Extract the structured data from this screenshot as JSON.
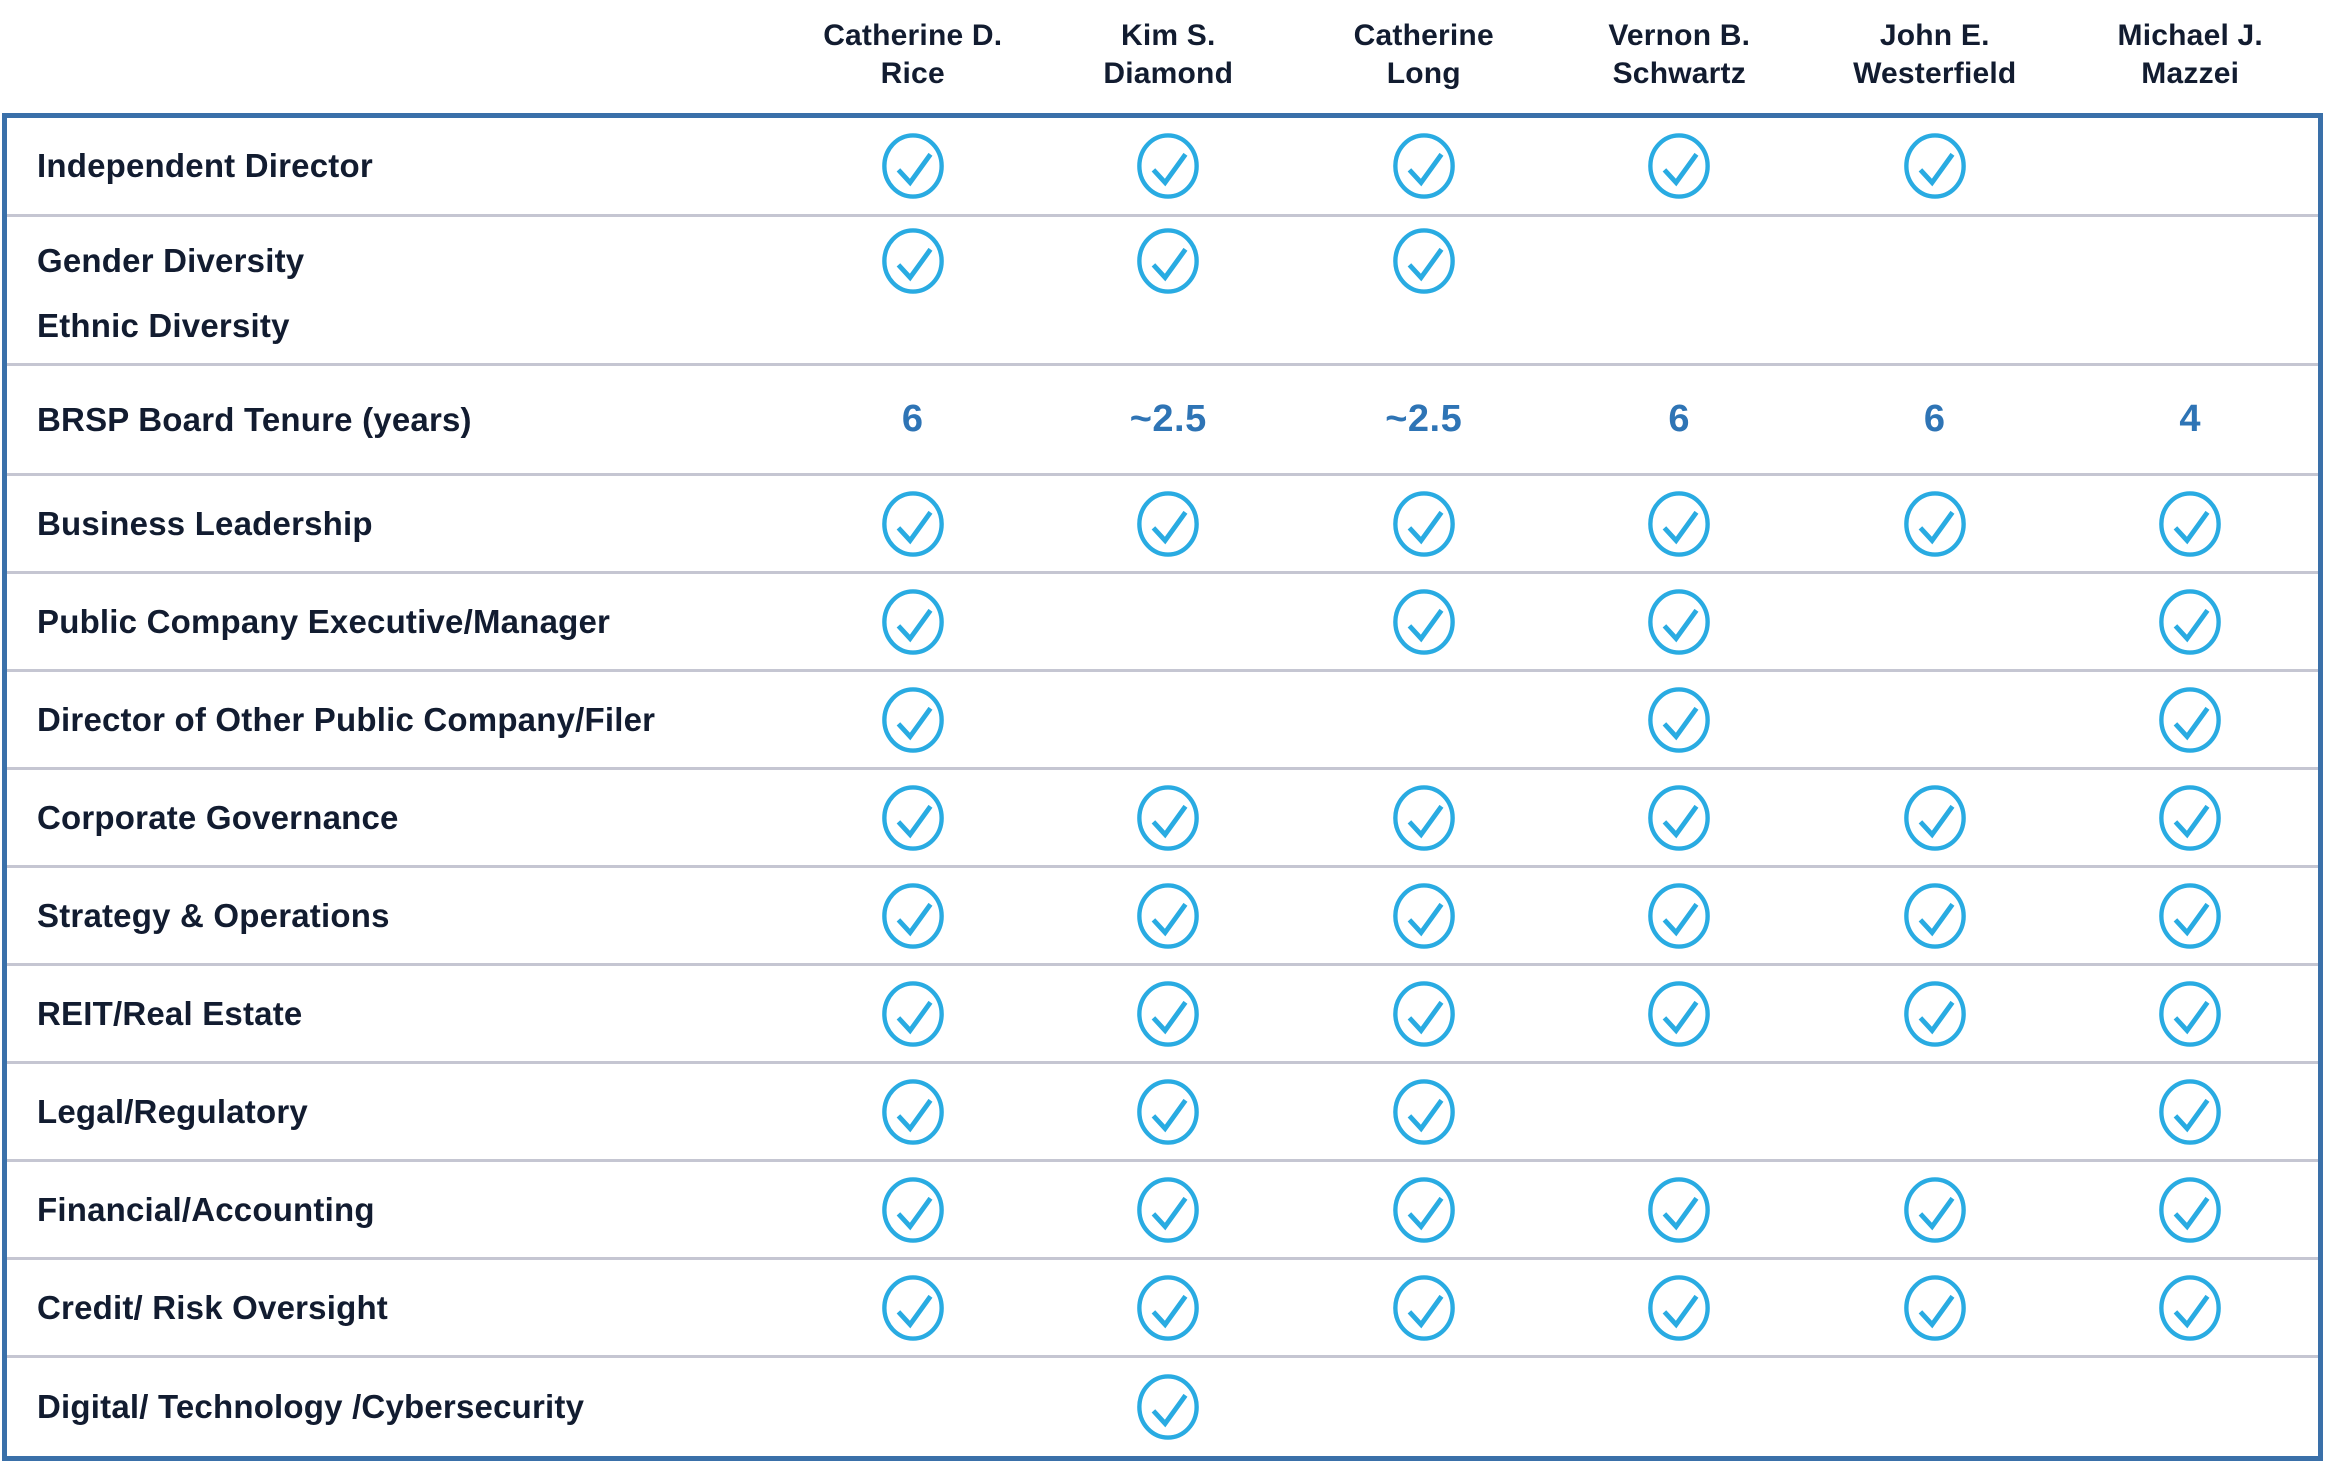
{
  "table": {
    "title_semantic": "board-of-directors-skills-matrix",
    "columns": [
      {
        "lines": [
          "Catherine D.",
          "Rice"
        ]
      },
      {
        "lines": [
          "Kim S.",
          "Diamond"
        ]
      },
      {
        "lines": [
          "Catherine",
          "Long"
        ]
      },
      {
        "lines": [
          "Vernon B.",
          "Schwartz"
        ]
      },
      {
        "lines": [
          "John E.",
          "Westerfield"
        ]
      },
      {
        "lines": [
          "Michael J.",
          "Mazzei"
        ]
      }
    ],
    "rows": [
      {
        "label": "Independent Director",
        "type": "checks",
        "checks": [
          true,
          true,
          true,
          true,
          true,
          false
        ]
      },
      {
        "label": "Gender Diversity",
        "type": "checks",
        "checks": [
          true,
          true,
          true,
          false,
          false,
          false
        ]
      },
      {
        "label": "Ethnic Diversity",
        "type": "checks",
        "checks": [
          false,
          false,
          false,
          false,
          false,
          false
        ]
      },
      {
        "label": "BRSP Board Tenure (years)",
        "type": "values",
        "values": [
          "6",
          "~2.5",
          "~2.5",
          "6",
          "6",
          "4"
        ]
      },
      {
        "label": "Business Leadership",
        "type": "checks",
        "checks": [
          true,
          true,
          true,
          true,
          true,
          true
        ]
      },
      {
        "label": "Public Company Executive/Manager",
        "type": "checks",
        "checks": [
          true,
          false,
          true,
          true,
          false,
          true
        ]
      },
      {
        "label": "Director of Other Public Company/Filer",
        "type": "checks",
        "checks": [
          true,
          false,
          false,
          true,
          false,
          true
        ]
      },
      {
        "label": "Corporate Governance",
        "type": "checks",
        "checks": [
          true,
          true,
          true,
          true,
          true,
          true
        ]
      },
      {
        "label": "Strategy & Operations",
        "type": "checks",
        "checks": [
          true,
          true,
          true,
          true,
          true,
          true
        ]
      },
      {
        "label": "REIT/Real Estate",
        "type": "checks",
        "checks": [
          true,
          true,
          true,
          true,
          true,
          true
        ]
      },
      {
        "label": "Legal/Regulatory",
        "type": "checks",
        "checks": [
          true,
          true,
          true,
          false,
          false,
          true
        ]
      },
      {
        "label": "Financial/Accounting",
        "type": "checks",
        "checks": [
          true,
          true,
          true,
          true,
          true,
          true
        ]
      },
      {
        "label": "Credit/ Risk Oversight",
        "type": "checks",
        "checks": [
          true,
          true,
          true,
          true,
          true,
          true
        ]
      },
      {
        "label": "Digital/ Technology /Cybersecurity",
        "type": "checks",
        "checks": [
          false,
          true,
          false,
          false,
          false,
          false
        ]
      }
    ],
    "icons": {
      "check": "circled-checkmark-icon"
    },
    "colors": {
      "check_blue": "#29ABE2",
      "tenure_blue": "#2E74B5",
      "table_border_blue": "#3A70A9",
      "row_divider_gray": "#C5C6D2",
      "text_navy": "#121C30"
    }
  }
}
